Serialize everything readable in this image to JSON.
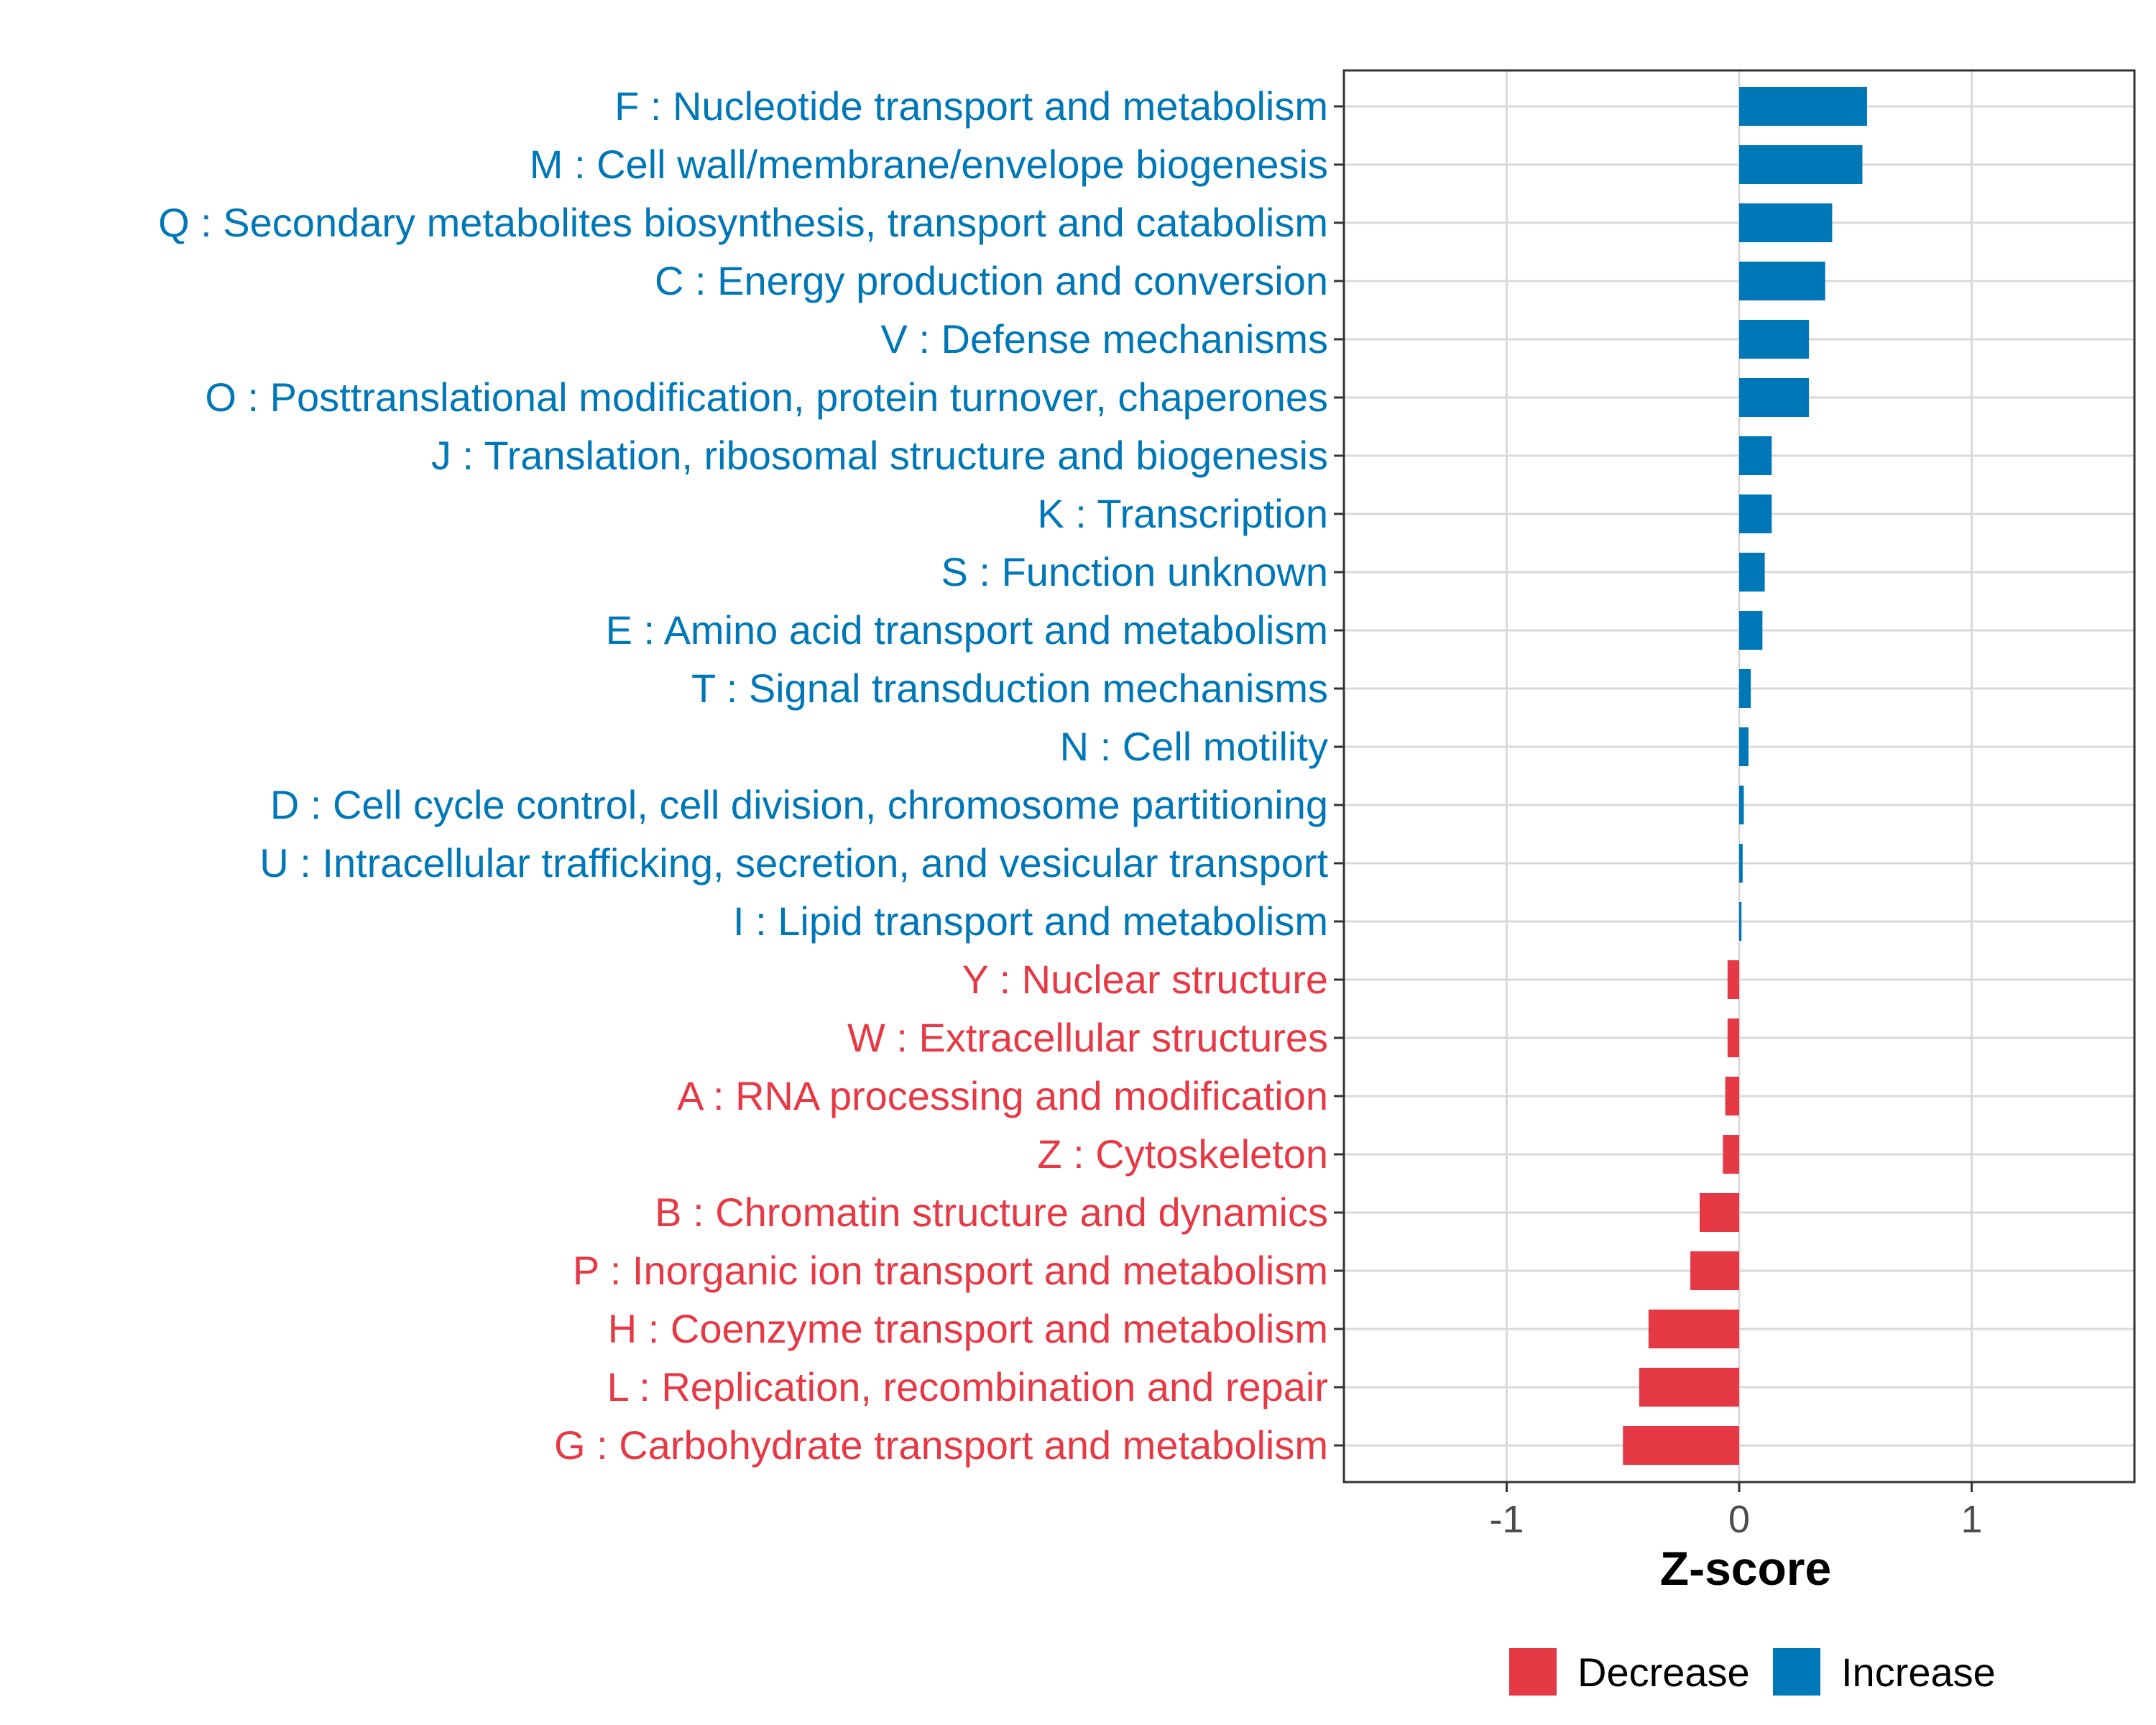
{
  "chart_data": {
    "type": "bar",
    "orientation": "horizontal",
    "title": "",
    "xlabel": "Z-score",
    "ylabel": "",
    "xlim": [
      -1.7,
      1.7
    ],
    "xticks": [
      -1,
      0,
      1
    ],
    "xtick_labels": [
      "-1",
      "0",
      "1"
    ],
    "grid": true,
    "legend_position": "bottom",
    "categories": [
      "F : Nucleotide transport and metabolism",
      "M : Cell wall/membrane/envelope biogenesis",
      "Q : Secondary metabolites biosynthesis, transport and catabolism",
      "C : Energy production and conversion",
      "V : Defense mechanisms",
      "O : Posttranslational modification, protein turnover, chaperones",
      "J : Translation, ribosomal structure and biogenesis",
      "K : Transcription",
      "S : Function unknown",
      "E : Amino acid transport and metabolism",
      "T : Signal transduction mechanisms",
      "N : Cell motility",
      "D : Cell cycle control, cell division, chromosome partitioning",
      "U : Intracellular trafficking, secretion, and vesicular transport",
      "I : Lipid transport and metabolism",
      "Y : Nuclear structure",
      "W : Extracellular structures",
      "A : RNA processing and modification",
      "Z : Cytoskeleton",
      "B : Chromatin structure and dynamics",
      "P : Inorganic ion transport and metabolism",
      "H : Coenzyme transport and metabolism",
      "L : Replication, recombination and repair",
      "G : Carbohydrate transport and metabolism"
    ],
    "values": [
      0.55,
      0.53,
      0.4,
      0.37,
      0.3,
      0.3,
      0.14,
      0.14,
      0.11,
      0.1,
      0.05,
      0.04,
      0.02,
      0.015,
      0.01,
      -0.05,
      -0.05,
      -0.06,
      -0.07,
      -0.17,
      -0.21,
      -0.39,
      -0.43,
      -0.5
    ],
    "groups": [
      "Increase",
      "Increase",
      "Increase",
      "Increase",
      "Increase",
      "Increase",
      "Increase",
      "Increase",
      "Increase",
      "Increase",
      "Increase",
      "Increase",
      "Increase",
      "Increase",
      "Increase",
      "Decrease",
      "Decrease",
      "Decrease",
      "Decrease",
      "Decrease",
      "Decrease",
      "Decrease",
      "Decrease",
      "Decrease"
    ],
    "legend": [
      {
        "name": "Decrease",
        "color": "#e63946"
      },
      {
        "name": "Increase",
        "color": "#0077b6"
      }
    ]
  },
  "colors": {
    "increase": "#0077b6",
    "decrease": "#e63946",
    "grid": "#d9d9d9",
    "panel_border": "#333333",
    "tick_text": "#4d4d4d"
  }
}
